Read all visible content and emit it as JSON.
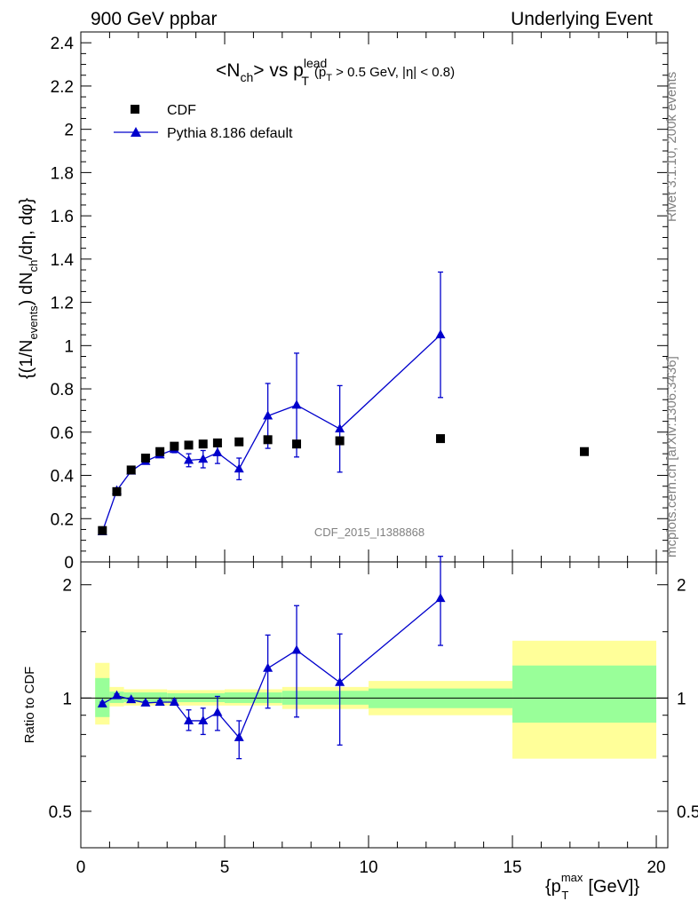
{
  "header": {
    "left": "900 GeV ppbar",
    "right": "Underlying Event"
  },
  "side_labels": {
    "rivet": "Rivet 3.1.10,  200k events",
    "mcplots": "mcplots.cern.ch [arXiv:1306.3436]"
  },
  "watermark": "CDF_2015_I1388868",
  "colors": {
    "mc": "#0000cc",
    "data": "#000000",
    "band_inner": "#99ff99",
    "band_outer": "#ffff99"
  },
  "chart_data": [
    {
      "type": "scatter",
      "title": {
        "base": "<N",
        "sub1": "ch",
        "mid": "> vs p",
        "sup2": "lead",
        "sub2": "T",
        "paren": "(p",
        "paren_sub": "T",
        "paren_rest": " > 0.5 GeV, |η| < 0.8)"
      },
      "ylabel": "{(1/N_events) dN_ch/dη, dφ}",
      "ylim": [
        0,
        2.45
      ],
      "yticks": [
        "0",
        "0.2",
        "0.4",
        "0.6",
        "0.8",
        "1",
        "1.2",
        "1.4",
        "1.6",
        "1.8",
        "2",
        "2.2",
        "2.4"
      ],
      "legend": {
        "position": "top-left",
        "data_label": "CDF",
        "mc_label": "Pythia 8.186 default"
      },
      "series": [
        {
          "name": "CDF",
          "x": [
            0.75,
            1.25,
            1.75,
            2.25,
            2.75,
            3.25,
            3.75,
            4.25,
            4.75,
            5.5,
            6.5,
            7.5,
            9.0,
            12.5,
            17.5
          ],
          "y": [
            0.145,
            0.325,
            0.425,
            0.48,
            0.51,
            0.535,
            0.54,
            0.545,
            0.55,
            0.555,
            0.565,
            0.545,
            0.56,
            0.57,
            0.51
          ]
        },
        {
          "name": "Pythia 8.186 default",
          "x": [
            0.75,
            1.25,
            1.75,
            2.25,
            2.75,
            3.25,
            3.75,
            4.25,
            4.75,
            5.5,
            6.5,
            7.5,
            9.0,
            12.5
          ],
          "y": [
            0.14,
            0.33,
            0.42,
            0.465,
            0.495,
            0.52,
            0.47,
            0.475,
            0.505,
            0.43,
            0.675,
            0.725,
            0.615,
            1.05
          ],
          "err": [
            0.005,
            0.008,
            0.01,
            0.01,
            0.012,
            0.015,
            0.03,
            0.04,
            0.05,
            0.05,
            0.15,
            0.24,
            0.2,
            0.29
          ]
        }
      ]
    },
    {
      "type": "scatter",
      "ylabel": "Ratio to CDF",
      "xlabel": "{p_T^max [GeV]}",
      "ylim": [
        0.4,
        2.3
      ],
      "yscale": "log",
      "yticks": [
        "0.5",
        "1",
        "2"
      ],
      "xlim": [
        0,
        20.4
      ],
      "xticks": [
        "0",
        "5",
        "10",
        "15",
        "20"
      ],
      "bands": [
        {
          "x0": 0.5,
          "x1": 1.0,
          "inner": [
            0.89,
            1.13
          ],
          "outer": [
            0.85,
            1.24
          ]
        },
        {
          "x0": 1.0,
          "x1": 1.5,
          "inner": [
            0.97,
            1.04
          ],
          "outer": [
            0.95,
            1.07
          ]
        },
        {
          "x0": 1.5,
          "x1": 3.0,
          "inner": [
            0.975,
            1.035
          ],
          "outer": [
            0.955,
            1.055
          ]
        },
        {
          "x0": 3.0,
          "x1": 5.0,
          "inner": [
            0.975,
            1.03
          ],
          "outer": [
            0.955,
            1.05
          ]
        },
        {
          "x0": 5.0,
          "x1": 7.0,
          "inner": [
            0.97,
            1.035
          ],
          "outer": [
            0.955,
            1.055
          ]
        },
        {
          "x0": 7.0,
          "x1": 10.0,
          "inner": [
            0.96,
            1.045
          ],
          "outer": [
            0.935,
            1.07
          ]
        },
        {
          "x0": 10.0,
          "x1": 15.0,
          "inner": [
            0.94,
            1.06
          ],
          "outer": [
            0.9,
            1.11
          ]
        },
        {
          "x0": 15.0,
          "x1": 20.0,
          "inner": [
            0.86,
            1.22
          ],
          "outer": [
            0.69,
            1.42
          ]
        }
      ],
      "series": [
        {
          "name": "Pythia 8.186 default",
          "x": [
            0.75,
            1.25,
            1.75,
            2.25,
            2.75,
            3.25,
            3.75,
            4.25,
            4.75,
            5.5,
            6.5,
            7.5,
            9.0,
            12.5
          ],
          "y": [
            0.965,
            1.015,
            0.99,
            0.97,
            0.975,
            0.975,
            0.87,
            0.87,
            0.915,
            0.785,
            1.2,
            1.34,
            1.1,
            1.84
          ],
          "ylo": [
            0.955,
            1.005,
            0.98,
            0.96,
            0.965,
            0.96,
            0.82,
            0.8,
            0.82,
            0.69,
            0.94,
            0.89,
            0.75,
            1.38
          ],
          "yhi": [
            0.975,
            1.025,
            1.0,
            0.98,
            0.985,
            0.99,
            0.93,
            0.94,
            1.01,
            0.87,
            1.47,
            1.76,
            1.48,
            2.38
          ]
        }
      ]
    }
  ]
}
